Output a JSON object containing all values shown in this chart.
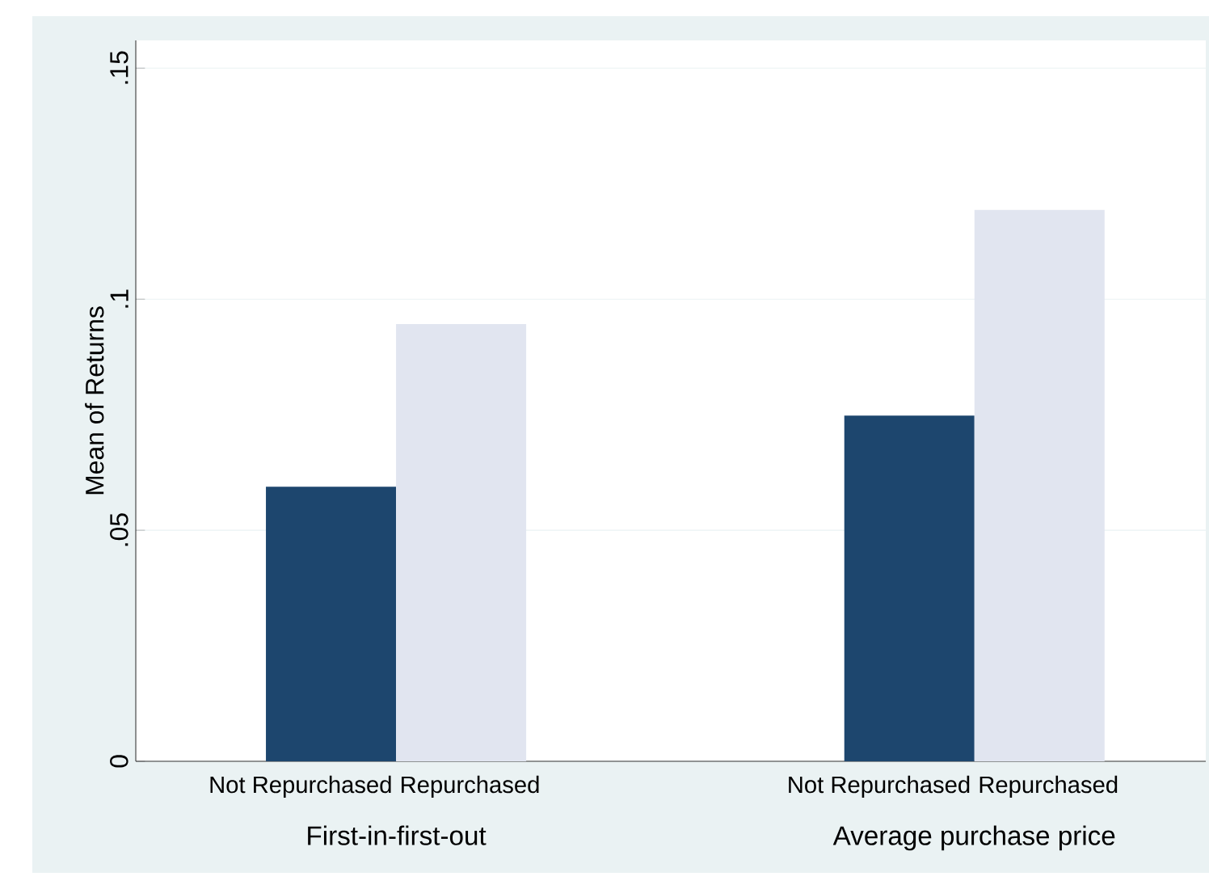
{
  "chart_data": {
    "type": "bar",
    "ylabel": "Mean of Returns",
    "categories": [
      "First-in-first-out",
      "Average purchase price"
    ],
    "series": [
      {
        "name": "Not Repurchased",
        "color": "#1d466e",
        "values": [
          0.0594,
          0.0748
        ]
      },
      {
        "name": "Repurchased",
        "color": "#e1e5f0",
        "values": [
          0.0946,
          0.1193
        ]
      }
    ],
    "ylim": [
      0,
      0.156
    ],
    "yticks": [
      {
        "value": 0,
        "label": "0"
      },
      {
        "value": 0.05,
        "label": ".05"
      },
      {
        "value": 0.1,
        "label": ".1"
      },
      {
        "value": 0.15,
        "label": ".15"
      }
    ],
    "grid": "y"
  }
}
